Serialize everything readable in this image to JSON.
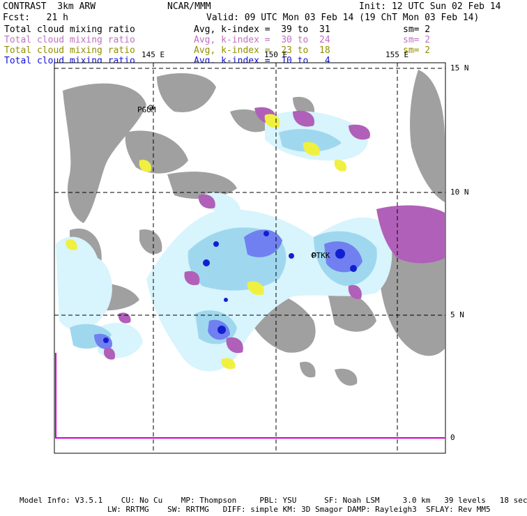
{
  "header": {
    "product": "CONTRAST  3km ARW",
    "center": "NCAR/MMM",
    "init": "Init: 12 UTC Sun 02 Feb 14",
    "fcst": "Fcst:   21 h",
    "valid": "Valid: 09 UTC Mon 03 Feb 14 (19 ChT Mon 03 Feb 14)"
  },
  "fields": [
    {
      "name": "Total cloud mixing ratio",
      "avg": "Avg, k-index =  39 to  31",
      "sm": "sm= 2",
      "color": "#000000"
    },
    {
      "name": "Total cloud mixing ratio",
      "avg": "Avg, k-index =  30 to  24",
      "sm": "sm= 2",
      "color": "#c070c0"
    },
    {
      "name": "Total cloud mixing ratio",
      "avg": "Avg, k-index =  23 to  18",
      "sm": "sm= 2",
      "color": "#909000"
    },
    {
      "name": "Total cloud mixing ratio",
      "avg": "Avg, k-index =  10 to   4",
      "sm": "",
      "color": "#1010e0"
    }
  ],
  "map": {
    "lon_labels": [
      "145 E",
      "150 E",
      "155 E"
    ],
    "lat_labels": [
      "15 N",
      "10 N",
      "5 N",
      "0"
    ],
    "stations": [
      "PGUM",
      "PTKK"
    ],
    "colors": {
      "land": "#a0a0a0",
      "cloud_light": "#d8f4fc",
      "cloud_mid": "#9fd8ee",
      "cloud_blue": "#7080f0",
      "cloud_deep": "#1020d0",
      "cloud_magenta": "#b060b8",
      "cloud_yellow": "#f0f040",
      "grid": "#000000",
      "edge_line": "#d000d0"
    }
  },
  "footer": {
    "line1": "Model Info: V3.5.1    CU: No Cu    MP: Thompson     PBL: YSU      SF: Noah LSM     3.0 km   39 levels   18 sec",
    "line2": "LW: RRTMG    SW: RRTMG   DIFF: simple KM: 3D Smagor DAMP: Rayleigh3  SFLAY: Rev MM5"
  }
}
